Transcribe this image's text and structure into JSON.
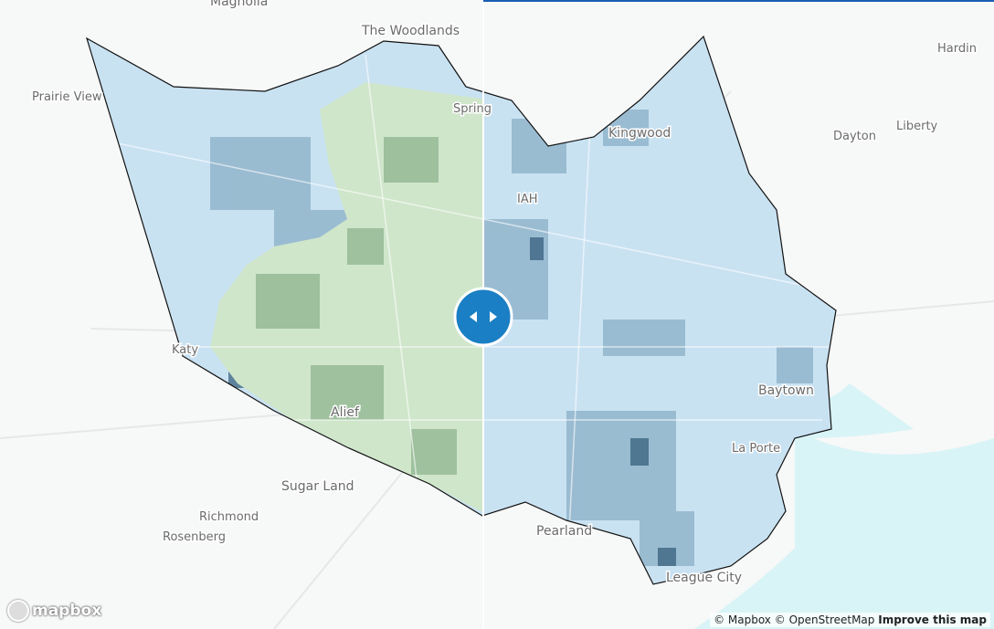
{
  "map": {
    "labels": [
      "Magnolia",
      "The Woodlands",
      "Hardin",
      "Prairie View",
      "Spring",
      "Kingwood",
      "Dayton",
      "Liberty",
      "IAH",
      "Katy",
      "Alief",
      "Baytown",
      "La Porte",
      "Sugar Land",
      "Richmond",
      "Rosenberg",
      "Pearland",
      "League City"
    ]
  },
  "logo": "mapbox",
  "attribution": {
    "mapbox": "© Mapbox",
    "osm": "© OpenStreetMap",
    "improve": "Improve this map"
  }
}
